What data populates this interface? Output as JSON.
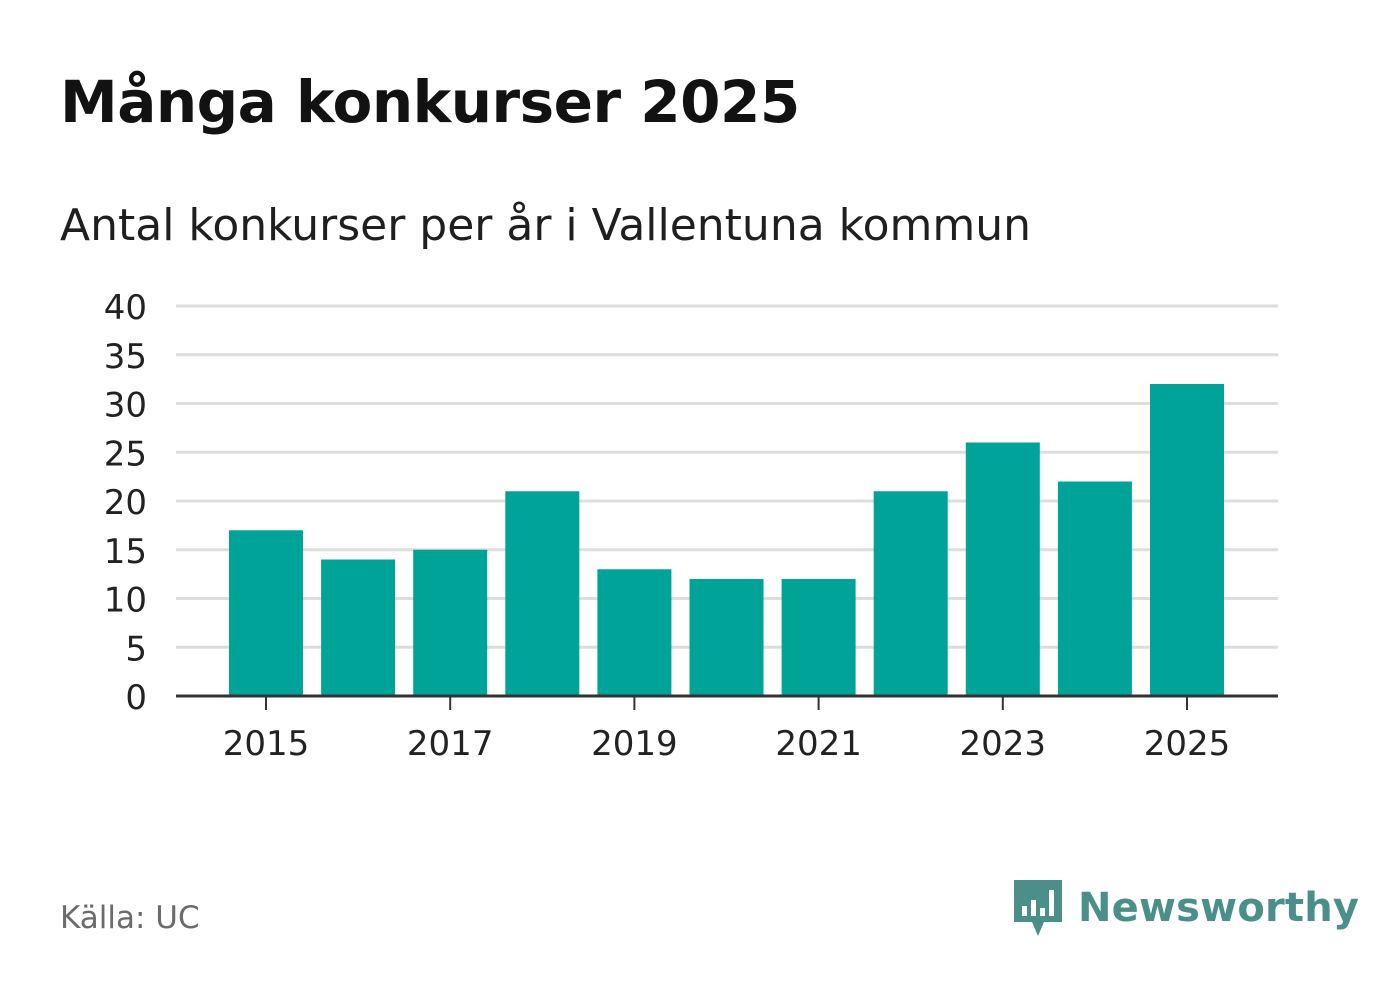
{
  "header": {
    "title": "Många konkurser 2025",
    "subtitle": "Antal konkurser per år i Vallentuna kommun"
  },
  "footer": {
    "source": "Källa: UC",
    "brand": "Newsworthy",
    "brand_icon": "newsworthy-logo-icon"
  },
  "colors": {
    "bar": "#00a398",
    "grid": "#dddddd",
    "axis": "#333333",
    "brand": "#4a8f89"
  },
  "chart_data": {
    "type": "bar",
    "categories": [
      "2015",
      "2016",
      "2017",
      "2018",
      "2019",
      "2020",
      "2021",
      "2022",
      "2023",
      "2024",
      "2025"
    ],
    "values": [
      17,
      14,
      15,
      21,
      13,
      12,
      12,
      21,
      26,
      22,
      32
    ],
    "x_tick_labels": [
      "2015",
      "2017",
      "2019",
      "2021",
      "2023",
      "2025"
    ],
    "y_ticks": [
      0,
      5,
      10,
      15,
      20,
      25,
      30,
      35,
      40
    ],
    "ylim": [
      0,
      40
    ],
    "grid": true,
    "legend": "none"
  }
}
